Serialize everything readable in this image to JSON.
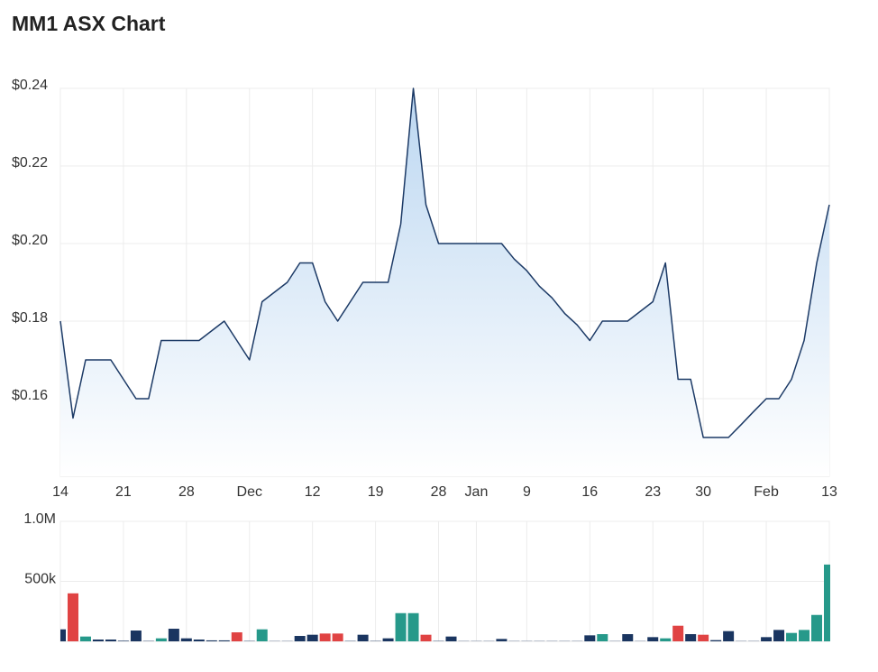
{
  "chart_data": [
    {
      "type": "line",
      "title": "MM1 ASX Chart",
      "categories": [
        "14",
        null,
        null,
        null,
        null,
        "21",
        null,
        null,
        null,
        null,
        "28",
        null,
        null,
        null,
        null,
        "Dec",
        null,
        null,
        null,
        null,
        "12",
        null,
        null,
        null,
        null,
        "19",
        null,
        null,
        null,
        null,
        "28",
        null,
        null,
        "Jan",
        null,
        null,
        null,
        "9",
        null,
        null,
        null,
        null,
        "16",
        null,
        null,
        null,
        null,
        "23",
        null,
        null,
        null,
        "30",
        null,
        null,
        null,
        null,
        "Feb",
        null,
        null,
        null,
        null,
        "13"
      ],
      "series": [
        {
          "color": "#1c3a66",
          "values": [
            0.18,
            0.155,
            0.17,
            0.17,
            0.17,
            0.165,
            0.16,
            0.16,
            0.175,
            0.175,
            0.175,
            0.175,
            0.1775,
            0.18,
            0.175,
            0.17,
            0.185,
            0.1875,
            0.19,
            0.195,
            0.195,
            0.185,
            0.18,
            0.185,
            0.19,
            0.19,
            0.19,
            0.205,
            0.24,
            0.21,
            0.2,
            0.2,
            0.2,
            0.2,
            0.2,
            0.2,
            0.196,
            0.193,
            0.189,
            0.186,
            0.182,
            0.179,
            0.175,
            0.18,
            0.18,
            0.18,
            0.1825,
            0.185,
            0.195,
            0.165,
            0.165,
            0.15,
            0.15,
            0.15,
            0.1533,
            0.1567,
            0.16,
            0.16,
            0.165,
            0.175,
            0.195,
            0.21
          ]
        }
      ],
      "ylim": [
        0.14,
        0.24
      ],
      "yticks": [
        {
          "value": 0.16,
          "label": "$0.16"
        },
        {
          "value": 0.18,
          "label": "$0.18"
        },
        {
          "value": 0.2,
          "label": "$0.20"
        },
        {
          "value": 0.22,
          "label": "$0.22"
        },
        {
          "value": 0.24,
          "label": "$0.24"
        }
      ],
      "grid": true
    },
    {
      "type": "bar",
      "values": [
        100000,
        400000,
        40000,
        15000,
        15000,
        5000,
        90000,
        3000,
        25000,
        105000,
        25000,
        15000,
        8000,
        8000,
        75000,
        3000,
        100000,
        2000,
        2000,
        45000,
        55000,
        65000,
        65000,
        3000,
        55000,
        3000,
        25000,
        235000,
        235000,
        55000,
        3000,
        40000,
        2000,
        2000,
        2000,
        20000,
        2000,
        2000,
        2000,
        2000,
        2000,
        2000,
        50000,
        60000,
        2000,
        60000,
        2000,
        35000,
        25000,
        130000,
        60000,
        55000,
        10000,
        85000,
        2000,
        2000,
        35000,
        95000,
        70000,
        95000,
        220000,
        640000
      ],
      "colors": [
        "#1a3560",
        "#e04343",
        "#26998a",
        "#1a3560",
        "#1a3560",
        "#1a3560",
        "#1a3560",
        "#1a3560",
        "#26998a",
        "#1a3560",
        "#1a3560",
        "#1a3560",
        "#1a3560",
        "#1a3560",
        "#e04343",
        "#1a3560",
        "#26998a",
        "#1a3560",
        "#1a3560",
        "#1a3560",
        "#1a3560",
        "#e04343",
        "#e04343",
        "#1a3560",
        "#1a3560",
        "#1a3560",
        "#1a3560",
        "#26998a",
        "#26998a",
        "#e04343",
        "#1a3560",
        "#1a3560",
        "#1a3560",
        "#1a3560",
        "#1a3560",
        "#1a3560",
        "#1a3560",
        "#1a3560",
        "#1a3560",
        "#1a3560",
        "#1a3560",
        "#1a3560",
        "#1a3560",
        "#26998a",
        "#1a3560",
        "#1a3560",
        "#1a3560",
        "#1a3560",
        "#26998a",
        "#e04343",
        "#1a3560",
        "#e04343",
        "#1a3560",
        "#1a3560",
        "#1a3560",
        "#1a3560",
        "#1a3560",
        "#1a3560",
        "#26998a",
        "#26998a",
        "#26998a",
        "#26998a"
      ],
      "ylim": [
        0,
        1000000
      ],
      "yticks": [
        {
          "value": 500000,
          "label": "500k"
        },
        {
          "value": 1000000,
          "label": "1.0M"
        }
      ],
      "grid": true
    }
  ]
}
